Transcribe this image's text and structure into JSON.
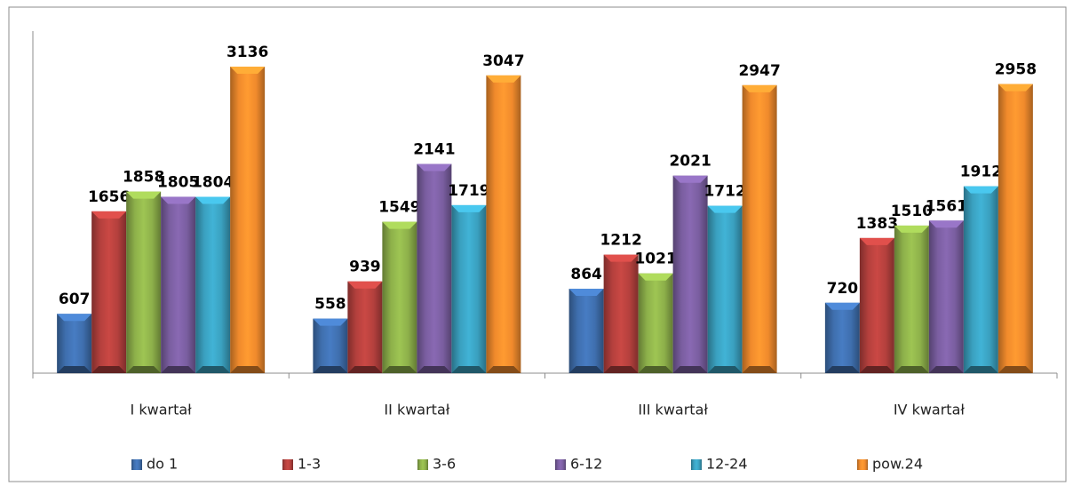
{
  "chart_data": {
    "type": "bar",
    "categories": [
      "I kwartał",
      "II kwartał",
      "III kwartał",
      "IV kwartał"
    ],
    "series": [
      {
        "name": "do 1",
        "color": "#3f6fae",
        "values": [
          607,
          558,
          864,
          720
        ]
      },
      {
        "name": "1-3",
        "color": "#b4403d",
        "values": [
          1656,
          939,
          1212,
          1383
        ]
      },
      {
        "name": "3-6",
        "color": "#8db04a",
        "values": [
          1858,
          1549,
          1021,
          1510
        ]
      },
      {
        "name": "6-12",
        "color": "#7a5ea0",
        "values": [
          1805,
          2141,
          2021,
          1561
        ]
      },
      {
        "name": "12-24",
        "color": "#3aa0bf",
        "values": [
          1804,
          1719,
          1712,
          1912
        ]
      },
      {
        "name": "pow.24",
        "color": "#f08a2c",
        "values": [
          3136,
          3047,
          2947,
          2958
        ]
      }
    ],
    "ylim": [
      0,
      3500
    ],
    "legend": "bottom"
  }
}
